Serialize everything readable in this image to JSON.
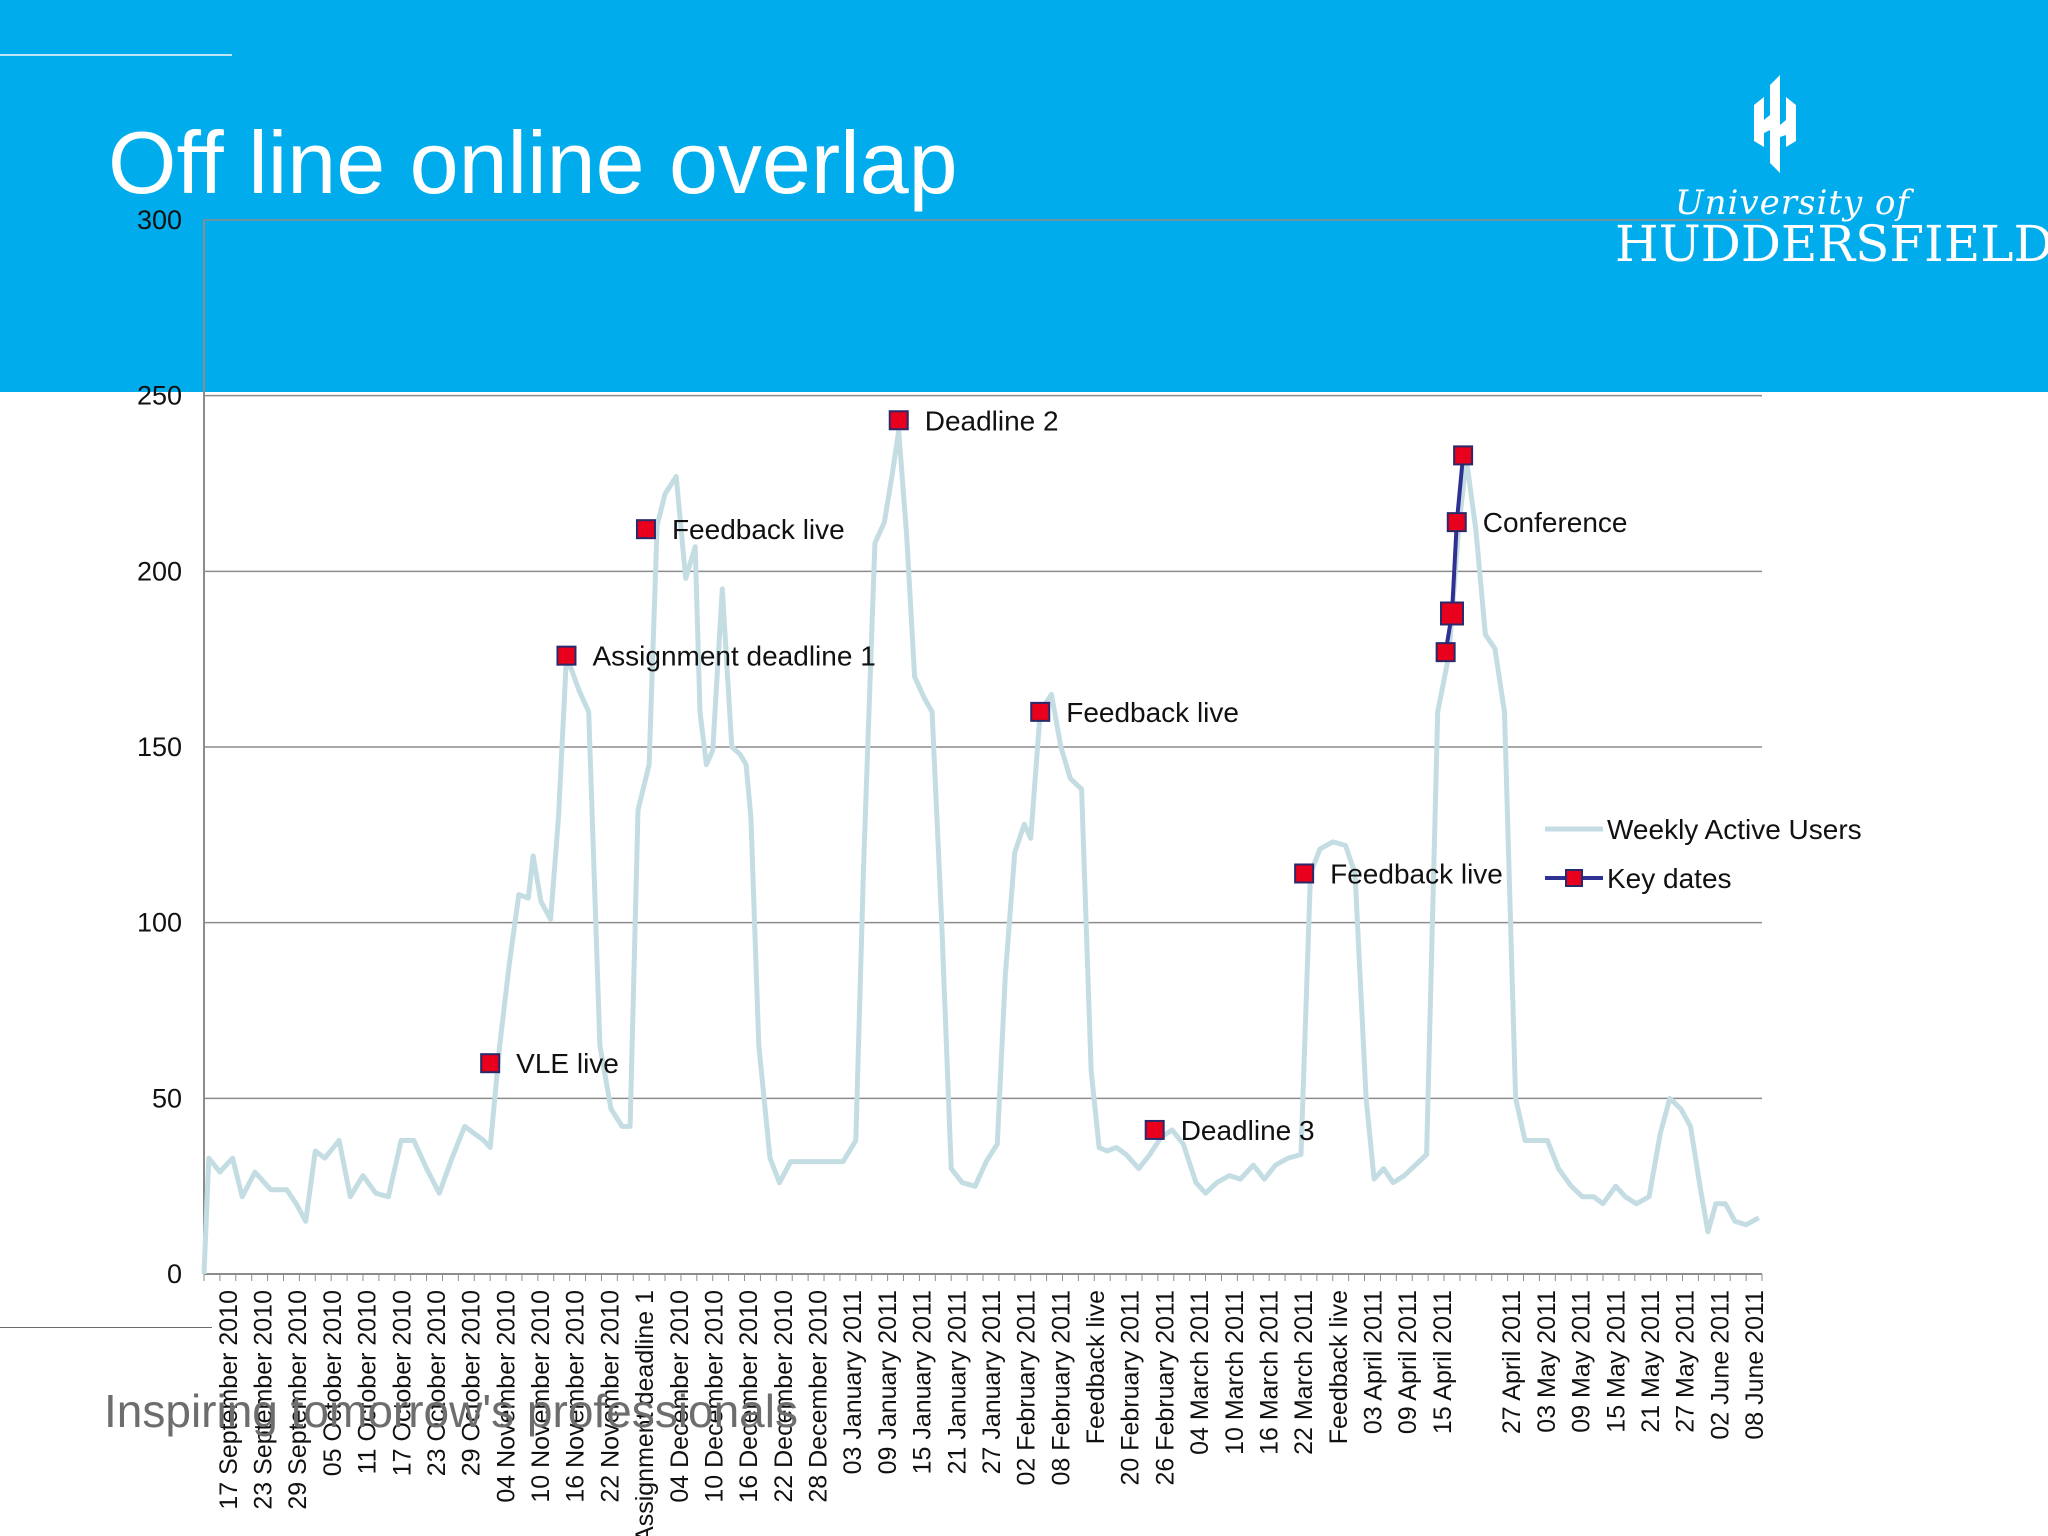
{
  "title": "Off line online overlap",
  "footer": {
    "tagline": "Inspiring tomorrow's professionals"
  },
  "logo": {
    "line1": "University of",
    "line2": "HUDDERSFIELD"
  },
  "colors": {
    "banner": "#01ACEC",
    "weekly_line": "#c4dde3",
    "key_marker": "#e8001c",
    "key_line": "#2f3192"
  },
  "chart_data": {
    "type": "line",
    "title": "",
    "xlabel": "",
    "ylabel": "",
    "ylim": [
      0,
      300
    ],
    "yticks": [
      0,
      50,
      100,
      150,
      200,
      250,
      300
    ],
    "grid": true,
    "legend_position": "right",
    "x_labels": [
      "17 September 2010",
      "23 September 2010",
      "29 September 2010",
      "05 October 2010",
      "11 October 2010",
      "17 October 2010",
      "23 October 2010",
      "29 October 2010",
      "04 November 2010",
      "10 November 2010",
      "16 November 2010",
      "22 November 2010",
      "Assignment deadline 1",
      "04 December 2010",
      "10 December 2010",
      "16 December 2010",
      "22 December 2010",
      "28 December 2010",
      "03 January 2011",
      "09 January 2011",
      "15 January 2011",
      "21 January 2011",
      "27 January 2011",
      "02 February 2011",
      "08 February 2011",
      "Feedback live",
      "20 February 2011",
      "26 February 2011",
      "04 March 2011",
      "10 March 2011",
      "16 March 2011",
      "22 March 2011",
      "Feedback live",
      "03 April 2011",
      "09 April 2011",
      "15 April 2011",
      "",
      "27 April 2011",
      "03 May 2011",
      "09 May 2011",
      "15 May 2011",
      "21 May 2011",
      "27 May 2011",
      "02 June 2011",
      "08 June 2011"
    ],
    "series": [
      {
        "name": "Weekly Active Users",
        "points": [
          [
            0,
            0
          ],
          [
            0.3,
            33
          ],
          [
            1.0,
            29
          ],
          [
            1.8,
            33
          ],
          [
            2.4,
            22
          ],
          [
            3.2,
            29
          ],
          [
            4.2,
            24
          ],
          [
            5.2,
            24
          ],
          [
            5.8,
            20
          ],
          [
            6.4,
            15
          ],
          [
            7.0,
            35
          ],
          [
            7.6,
            33
          ],
          [
            8.5,
            38
          ],
          [
            9.2,
            22
          ],
          [
            10,
            28
          ],
          [
            10.8,
            23
          ],
          [
            11.6,
            22
          ],
          [
            12.4,
            38
          ],
          [
            13.2,
            38
          ],
          [
            14.0,
            30
          ],
          [
            14.8,
            23
          ],
          [
            15.6,
            33
          ],
          [
            16.4,
            42
          ],
          [
            17.6,
            38
          ],
          [
            18.0,
            36
          ],
          [
            18.6,
            65
          ],
          [
            19.2,
            88
          ],
          [
            19.8,
            108
          ],
          [
            20.4,
            107
          ],
          [
            20.7,
            119
          ],
          [
            21.2,
            106
          ],
          [
            21.8,
            101
          ],
          [
            22.3,
            130
          ],
          [
            22.8,
            176
          ],
          [
            23.6,
            166
          ],
          [
            24.2,
            160
          ],
          [
            24.9,
            65
          ],
          [
            25.6,
            47
          ],
          [
            26.3,
            42
          ],
          [
            26.8,
            42
          ],
          [
            27.3,
            132
          ],
          [
            28.0,
            145
          ],
          [
            28.5,
            213
          ],
          [
            29.0,
            222
          ],
          [
            29.7,
            227
          ],
          [
            30.3,
            198
          ],
          [
            30.9,
            207
          ],
          [
            31.2,
            160
          ],
          [
            31.6,
            145
          ],
          [
            32.0,
            149
          ],
          [
            32.6,
            195
          ],
          [
            33.2,
            150
          ],
          [
            33.7,
            148
          ],
          [
            34.1,
            145
          ],
          [
            34.4,
            130
          ],
          [
            34.9,
            65
          ],
          [
            35.6,
            33
          ],
          [
            36.2,
            26
          ],
          [
            36.9,
            32
          ],
          [
            37.6,
            32
          ],
          [
            38.3,
            32
          ],
          [
            39.0,
            32
          ],
          [
            39.5,
            32
          ],
          [
            40.2,
            32
          ],
          [
            41.0,
            38
          ],
          [
            41.5,
            118
          ],
          [
            42.2,
            208
          ],
          [
            42.8,
            214
          ],
          [
            43.3,
            228
          ],
          [
            43.7,
            240
          ],
          [
            44.2,
            210
          ],
          [
            44.7,
            170
          ],
          [
            45.3,
            164
          ],
          [
            45.8,
            160
          ],
          [
            46.4,
            100
          ],
          [
            47.0,
            30
          ],
          [
            47.7,
            26
          ],
          [
            48.5,
            25
          ],
          [
            49.2,
            32
          ],
          [
            49.9,
            37
          ],
          [
            50.4,
            85
          ],
          [
            51.0,
            120
          ],
          [
            51.6,
            128
          ],
          [
            52.0,
            124
          ],
          [
            52.6,
            160
          ],
          [
            53.3,
            165
          ],
          [
            53.9,
            150
          ],
          [
            54.5,
            141
          ],
          [
            55.2,
            138
          ],
          [
            55.8,
            58
          ],
          [
            56.3,
            36
          ],
          [
            56.8,
            35
          ],
          [
            57.4,
            36
          ],
          [
            58.0,
            34
          ],
          [
            58.8,
            30
          ],
          [
            59.5,
            34
          ],
          [
            60.2,
            39
          ],
          [
            60.9,
            41
          ],
          [
            61.6,
            37
          ],
          [
            62.4,
            26
          ],
          [
            63.0,
            23
          ],
          [
            63.7,
            26
          ],
          [
            64.5,
            28
          ],
          [
            65.2,
            27
          ],
          [
            66.0,
            31
          ],
          [
            66.7,
            27
          ],
          [
            67.4,
            31
          ],
          [
            68.2,
            33
          ],
          [
            69.0,
            34
          ],
          [
            69.6,
            114
          ],
          [
            70.2,
            121
          ],
          [
            71.0,
            123
          ],
          [
            71.8,
            122
          ],
          [
            72.4,
            114
          ],
          [
            73.1,
            50
          ],
          [
            73.6,
            27
          ],
          [
            74.2,
            30
          ],
          [
            74.8,
            26
          ],
          [
            75.5,
            28
          ],
          [
            76.2,
            31
          ],
          [
            76.9,
            34
          ],
          [
            77.6,
            160
          ],
          [
            78.3,
            176
          ],
          [
            78.9,
            211
          ],
          [
            79.4,
            232
          ],
          [
            80.0,
            212
          ],
          [
            80.6,
            182
          ],
          [
            81.2,
            178
          ],
          [
            81.8,
            160
          ],
          [
            82.5,
            50
          ],
          [
            83.1,
            38
          ],
          [
            83.8,
            38
          ],
          [
            84.5,
            38
          ],
          [
            85.2,
            30
          ],
          [
            86.0,
            25
          ],
          [
            86.7,
            22
          ],
          [
            87.4,
            22
          ],
          [
            88.0,
            20
          ],
          [
            88.8,
            25
          ],
          [
            89.4,
            22
          ],
          [
            90.1,
            20
          ],
          [
            90.9,
            22
          ],
          [
            91.6,
            40
          ],
          [
            92.2,
            50
          ],
          [
            92.9,
            47
          ],
          [
            93.5,
            42
          ],
          [
            94.1,
            25
          ],
          [
            94.6,
            12
          ],
          [
            95.1,
            20
          ],
          [
            95.7,
            20
          ],
          [
            96.3,
            15
          ],
          [
            97.0,
            14
          ],
          [
            97.8,
            16
          ]
        ]
      },
      {
        "name": "Key dates",
        "points": [
          [
            18.0,
            60,
            "VLE live"
          ],
          [
            22.8,
            176,
            "Assignment deadline 1"
          ],
          [
            27.8,
            212,
            "Feedback live"
          ],
          [
            43.7,
            243,
            "Deadline  2"
          ],
          [
            52.6,
            160,
            "Feedback live"
          ],
          [
            59.8,
            41,
            "Deadline 3"
          ],
          [
            69.2,
            114,
            "Feedback live"
          ],
          [
            78.1,
            177,
            ""
          ],
          [
            78.5,
            188,
            ""
          ],
          [
            78.8,
            214,
            "Conference"
          ],
          [
            79.2,
            233,
            ""
          ]
        ]
      }
    ]
  }
}
